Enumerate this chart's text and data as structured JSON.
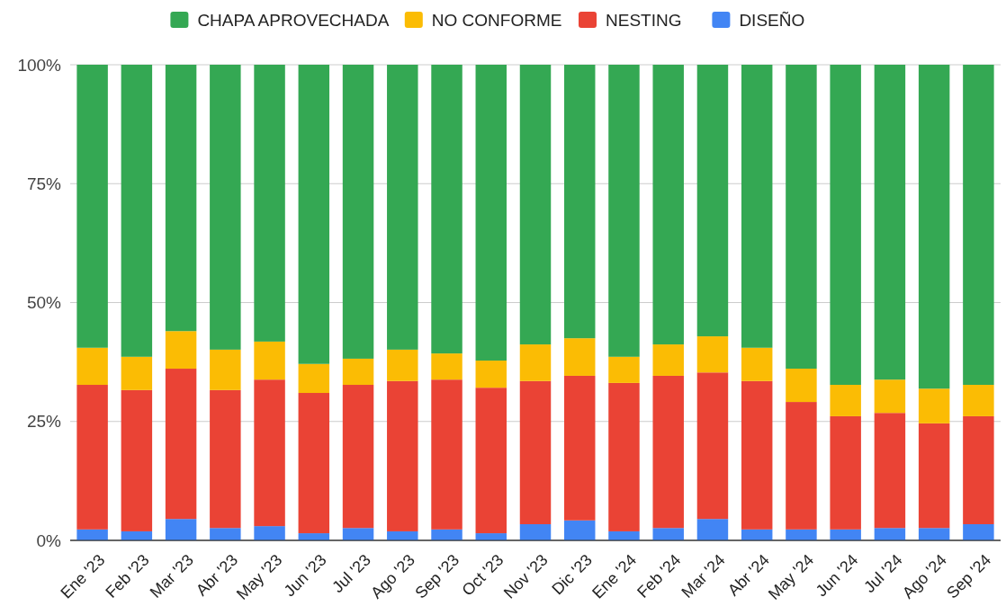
{
  "chart_data": {
    "type": "bar",
    "stacked": true,
    "legend": "top",
    "grid": "y",
    "categories": [
      "Ene '23",
      "Feb '23",
      "Mar '23",
      "Abr '23",
      "May '23",
      "Jun '23",
      "Jul '23",
      "Ago '23",
      "Sep '23",
      "Oct '23",
      "Nov '23",
      "Dic '23",
      "Ene '24",
      "Feb '24",
      "Mar '24",
      "Abr '24",
      "May '24",
      "Jun '24",
      "Jul '24",
      "Ago '24",
      "Sep '24"
    ],
    "ylim": [
      0,
      100
    ],
    "yticks": [
      {
        "value": 0,
        "label": "0%"
      },
      {
        "value": 25,
        "label": "25%"
      },
      {
        "value": 50,
        "label": "50%"
      },
      {
        "value": 75,
        "label": "75%"
      },
      {
        "value": 100,
        "label": "100%"
      }
    ],
    "series": [
      {
        "name": "DISEÑO",
        "color": "#4285f4",
        "values": [
          2.3,
          1.9,
          4.5,
          2.6,
          3.0,
          1.5,
          2.6,
          1.9,
          2.3,
          1.5,
          3.4,
          4.2,
          1.9,
          2.6,
          4.5,
          2.3,
          2.3,
          2.3,
          2.6,
          2.6,
          3.4
        ]
      },
      {
        "name": "NESTING",
        "color": "#ea4335",
        "values": [
          30.4,
          29.7,
          31.6,
          29.0,
          30.8,
          29.5,
          30.1,
          31.6,
          31.5,
          30.6,
          30.1,
          30.4,
          31.2,
          32.0,
          30.8,
          31.2,
          26.8,
          23.8,
          24.2,
          22.0,
          22.7
        ]
      },
      {
        "name": "NO CONFORME",
        "color": "#fbbc04",
        "values": [
          7.8,
          7.0,
          7.9,
          8.5,
          8.0,
          6.1,
          5.5,
          6.6,
          5.5,
          5.7,
          7.7,
          7.9,
          5.5,
          6.6,
          7.6,
          7.0,
          7.0,
          6.6,
          7.0,
          7.3,
          6.6
        ]
      },
      {
        "name": "CHAPA APROVECHADA",
        "color": "#34a853",
        "values": [
          59.5,
          61.4,
          56.0,
          59.9,
          58.2,
          62.9,
          61.8,
          59.9,
          60.7,
          62.2,
          58.8,
          57.5,
          61.4,
          58.8,
          57.1,
          59.5,
          63.9,
          67.3,
          66.2,
          68.1,
          67.3
        ]
      }
    ]
  }
}
